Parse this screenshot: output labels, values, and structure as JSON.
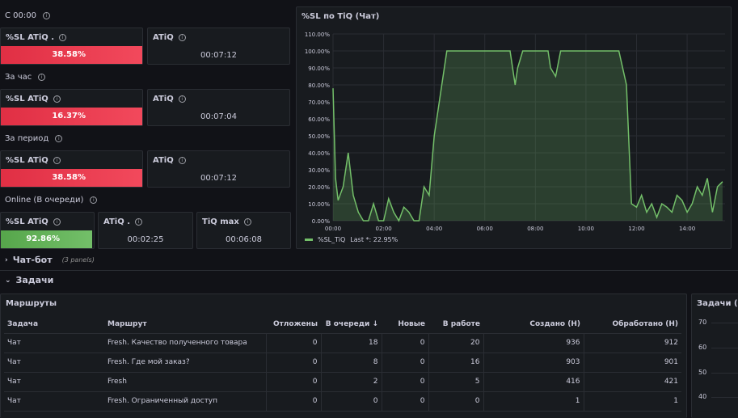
{
  "since_midnight": {
    "title": "С 00:00",
    "sl": {
      "title": "%SL ATiQ .",
      "value": "38.58%",
      "fill": 0.3858
    },
    "atiq": {
      "title": "ATiQ",
      "value": "00:07:12"
    }
  },
  "per_hour": {
    "title": "За час",
    "sl": {
      "title": "%SL ATiQ",
      "value": "16.37%",
      "fill": 0.1637
    },
    "atiq": {
      "title": "ATiQ",
      "value": "00:07:04"
    }
  },
  "per_period": {
    "title": "За период",
    "sl": {
      "title": "%SL ATiQ",
      "value": "38.58%",
      "fill": 0.3858
    },
    "atiq": {
      "title": "ATiQ",
      "value": "00:07:12"
    }
  },
  "online": {
    "title": "Online (В очереди)",
    "sl": {
      "title": "%SL ATiQ",
      "value": "92.86%",
      "fill": 0.9286
    },
    "atiq": {
      "title": "ATiQ .",
      "value": "00:02:25"
    },
    "tiqmax": {
      "title": "TiQ max",
      "value": "00:06:08"
    }
  },
  "chatbot_row": {
    "label": "Чат-бот",
    "count": "(3 panels)"
  },
  "tasks_row": {
    "label": "Задачи"
  },
  "sl_chart": {
    "title": "%SL по TiQ (Чат)",
    "legend": "%SL_TiQ",
    "legend_last": "Last *: 22.95%"
  },
  "chart_data": {
    "type": "area",
    "title": "%SL по TiQ (Чат)",
    "y_ticks": [
      "110.00%",
      "100.00%",
      "90.00%",
      "80.00%",
      "70.00%",
      "60.00%",
      "50.00%",
      "40.00%",
      "30.00%",
      "20.00%",
      "10.00%",
      "0.00%"
    ],
    "x_ticks": [
      "00:00",
      "02:00",
      "04:00",
      "06:00",
      "08:00",
      "10:00",
      "12:00",
      "14:00"
    ],
    "ylim": [
      0,
      110
    ],
    "xlim": [
      0,
      15.5
    ],
    "series": [
      {
        "name": "%SL_TiQ",
        "x": [
          0,
          0.1,
          0.2,
          0.4,
          0.6,
          0.8,
          1.0,
          1.2,
          1.4,
          1.6,
          1.8,
          2.0,
          2.2,
          2.4,
          2.6,
          2.8,
          3.0,
          3.2,
          3.4,
          3.6,
          3.8,
          4.0,
          4.5,
          5.0,
          5.5,
          6.0,
          6.5,
          7.0,
          7.2,
          7.3,
          7.5,
          8.0,
          8.5,
          8.6,
          8.8,
          9.0,
          9.5,
          10.0,
          10.5,
          11.0,
          11.3,
          11.6,
          11.8,
          12.0,
          12.2,
          12.4,
          12.6,
          12.8,
          13.0,
          13.2,
          13.4,
          13.6,
          13.8,
          14.0,
          14.2,
          14.4,
          14.6,
          14.8,
          15.0,
          15.2,
          15.4
        ],
        "y": [
          78,
          25,
          12,
          20,
          40,
          15,
          5,
          0,
          0,
          10,
          0,
          0,
          13,
          5,
          0,
          8,
          5,
          0,
          0,
          20,
          15,
          50,
          100,
          100,
          100,
          100,
          100,
          100,
          80,
          90,
          100,
          100,
          100,
          90,
          85,
          100,
          100,
          100,
          100,
          100,
          100,
          80,
          10,
          8,
          15,
          5,
          10,
          2,
          10,
          8,
          5,
          15,
          12,
          5,
          10,
          20,
          15,
          25,
          5,
          20,
          23
        ]
      }
    ]
  },
  "routes_table": {
    "title": "Маршруты",
    "columns": [
      "Задача",
      "Маршрут",
      "Отложены",
      "В очереди",
      "Новые",
      "В работе",
      "Создано (Н)",
      "Обработано (Н)"
    ],
    "sort_indicator": "↓",
    "rows": [
      [
        "Чат",
        "Fresh. Качество полученного товара",
        "0",
        "18",
        "0",
        "20",
        "936",
        "912"
      ],
      [
        "Чат",
        "Fresh. Где мой заказ?",
        "0",
        "8",
        "0",
        "16",
        "903",
        "901"
      ],
      [
        "Чат",
        "Fresh",
        "0",
        "2",
        "0",
        "5",
        "416",
        "421"
      ],
      [
        "Чат",
        "Fresh. Ограниченный доступ",
        "0",
        "0",
        "0",
        "0",
        "1",
        "1"
      ]
    ]
  },
  "tasks_chart": {
    "title": "Задачи (Ча",
    "y_ticks": [
      "70",
      "60",
      "50",
      "40"
    ]
  }
}
